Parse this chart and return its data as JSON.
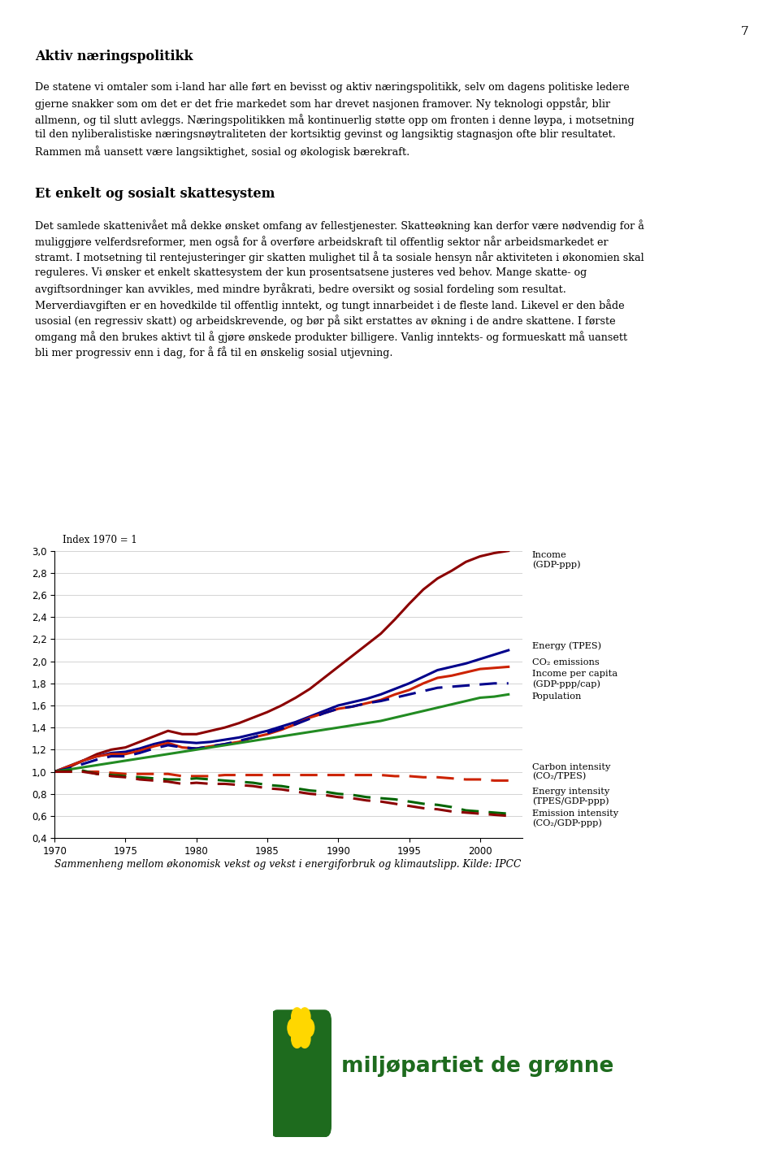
{
  "page_number": "7",
  "heading1": "Aktiv næringspolitikk",
  "para1_lines": [
    "De statene vi omtaler som i-land har alle ført en bevisst og aktiv næringspolitikk, selv om dagens politiske ledere",
    "gjerne snakker som om det er det frie markedet som har drevet nasjonen framover. Ny teknologi oppstår, blir",
    "allmenn, og til slutt avleggs. Næringspolitikken må kontinuerlig støtte opp om fronten i denne løypa, i motsetning",
    "til den nyliberalistiske næringsnøytraliteten der kortsiktig gevinst og langsiktig stagnasjon ofte blir resultatet.",
    "Rammen må uansett være langsiktighet, sosial og økologisk bærekraft."
  ],
  "heading2": "Et enkelt og sosialt skattesystem",
  "para2_lines": [
    "Det samlede skattenivået må dekke ønsket omfang av fellestjenester. Skatteøkning kan derfor være nødvendig for å",
    "muliggjøre velferdsreformer, men også for å overføre arbeidskraft til offentlig sektor når arbeidsmarkedet er",
    "stramt. I motsetning til rentejusteringer gir skatten mulighet til å ta sosiale hensyn når aktiviteten i økonomien skal",
    "reguleres. Vi ønsker et enkelt skattesystem der kun prosentsatsene justeres ved behov. Mange skatte- og",
    "avgiftsordninger kan avvikles, med mindre byråkrati, bedre oversikt og sosial fordeling som resultat.",
    "Merverdiavgiften er en hovedkilde til offentlig inntekt, og tungt innarbeidet i de fleste land. Likevel er den både",
    "usosial (en regressiv skatt) og arbeidskrevende, og bør på sikt erstattes av økning i de andre skattene. I første",
    "omgang må den brukes aktivt til å gjøre ønskede produkter billigere. Vanlig inntekts- og formueskatt må uansett",
    "bli mer progressiv enn i dag, for å få til en ønskelig sosial utjevning."
  ],
  "chart_index_label": "Index 1970 = 1",
  "chart_caption": "Sammenheng mellom økonomisk vekst og vekst i energiforbruk og klimautslipp. Kilde: IPCC",
  "xmin": 1970,
  "xmax": 2003,
  "ymin": 0.4,
  "ymax": 3.0,
  "yticks": [
    0.4,
    0.6,
    0.8,
    1.0,
    1.2,
    1.4,
    1.6,
    1.8,
    2.0,
    2.2,
    2.4,
    2.6,
    2.8,
    3.0
  ],
  "xticks": [
    1970,
    1975,
    1980,
    1985,
    1990,
    1995,
    2000
  ],
  "series": {
    "income_gdp": {
      "label": "Income\n(GDP-ppp)",
      "color": "#8b0000",
      "linestyle": "solid",
      "linewidth": 2.2
    },
    "energy_tpes": {
      "label": "Energy (TPES)",
      "color": "#00008b",
      "linestyle": "solid",
      "linewidth": 2.2
    },
    "co2_emissions": {
      "label": "CO₂ emissions",
      "color": "#cc2200",
      "linestyle": "solid",
      "linewidth": 2.2
    },
    "income_per_capita": {
      "label": "Income per capita\n(GDP-ppp/cap)",
      "color": "#00008b",
      "linestyle": "dashed",
      "linewidth": 2.2
    },
    "population": {
      "label": "Population",
      "color": "#228b22",
      "linestyle": "solid",
      "linewidth": 2.2
    },
    "carbon_intensity": {
      "label": "Carbon intensity\n(CO₂/TPES)",
      "color": "#cc2200",
      "linestyle": "dashed",
      "linewidth": 2.2
    },
    "energy_intensity": {
      "label": "Energy intensity\n(TPES/GDP-ppp)",
      "color": "#006400",
      "linestyle": "dashed",
      "linewidth": 2.2
    },
    "emission_intensity": {
      "label": "Emission intensity\n(CO₂/GDP-ppp)",
      "color": "#8b0000",
      "linestyle": "dashed",
      "linewidth": 2.2
    }
  },
  "logo_text": "miljøpartiet de grønne",
  "background_color": "#ffffff",
  "text_fontsize": 9.2,
  "heading_fontsize": 11.5,
  "text_color": "#000000"
}
